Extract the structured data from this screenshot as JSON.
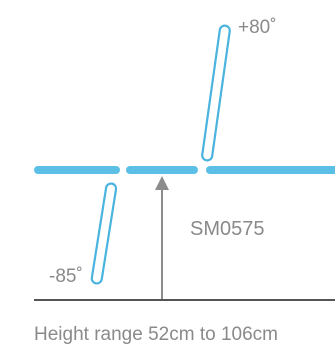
{
  "diagram": {
    "model_code": "SM0575",
    "angle_up": "+80˚",
    "angle_down": "-85˚",
    "height_caption": "Height range 52cm to 106cm"
  },
  "colors": {
    "segment_fill": "#5bbfe6",
    "segment_outline": "#4ab3de",
    "arrow": "#8c8c8c",
    "floor_line": "#555555",
    "text": "#8a8a8a"
  }
}
